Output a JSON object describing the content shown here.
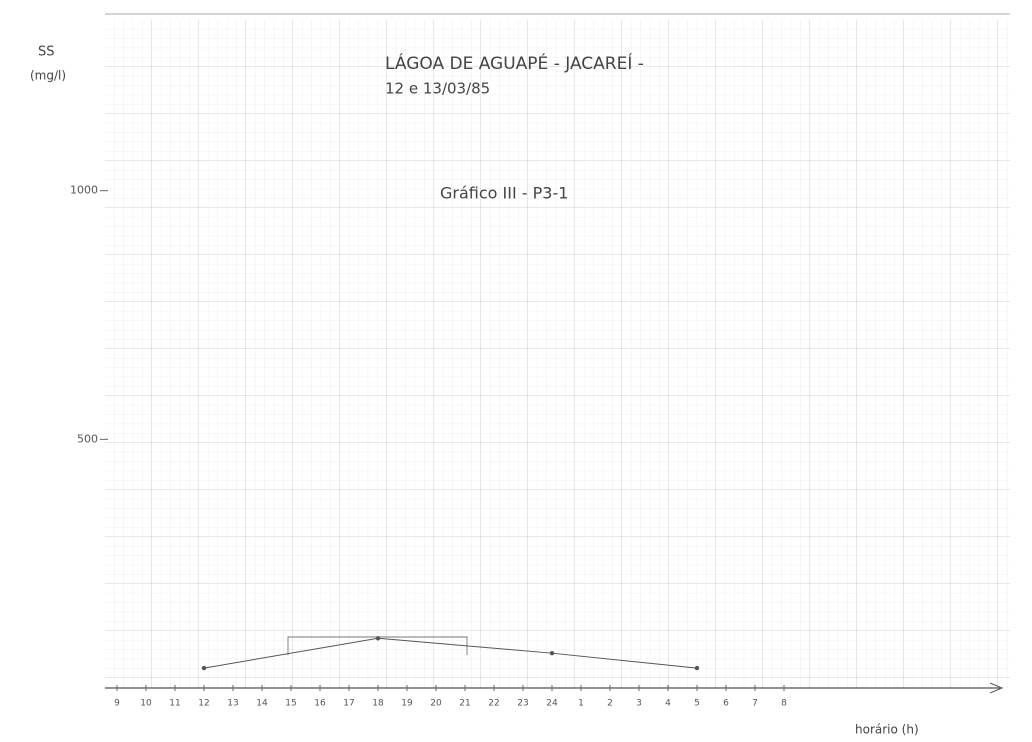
{
  "chart_data": {
    "type": "line",
    "title": "LÁGOA DE AGUAPÉ - JACAREÍ -",
    "subtitle": "12 e 13/03/85",
    "annotation": "Gráfico III - P3-1",
    "ylabel": "SS",
    "ylabel_unit": "(mg/l)",
    "xlabel": "horário (h)",
    "categories": [
      "9",
      "10",
      "11",
      "12",
      "13",
      "14",
      "15",
      "16",
      "17",
      "18",
      "19",
      "20",
      "21",
      "22",
      "23",
      "24",
      "1",
      "2",
      "3",
      "4",
      "5",
      "6",
      "7",
      "8"
    ],
    "x": [
      "12",
      "18",
      "24",
      "5"
    ],
    "values": [
      40,
      100,
      70,
      40
    ],
    "color": "#555555",
    "ylim": [
      0,
      1300
    ],
    "yticks": [
      500,
      1000
    ],
    "grid": true
  }
}
